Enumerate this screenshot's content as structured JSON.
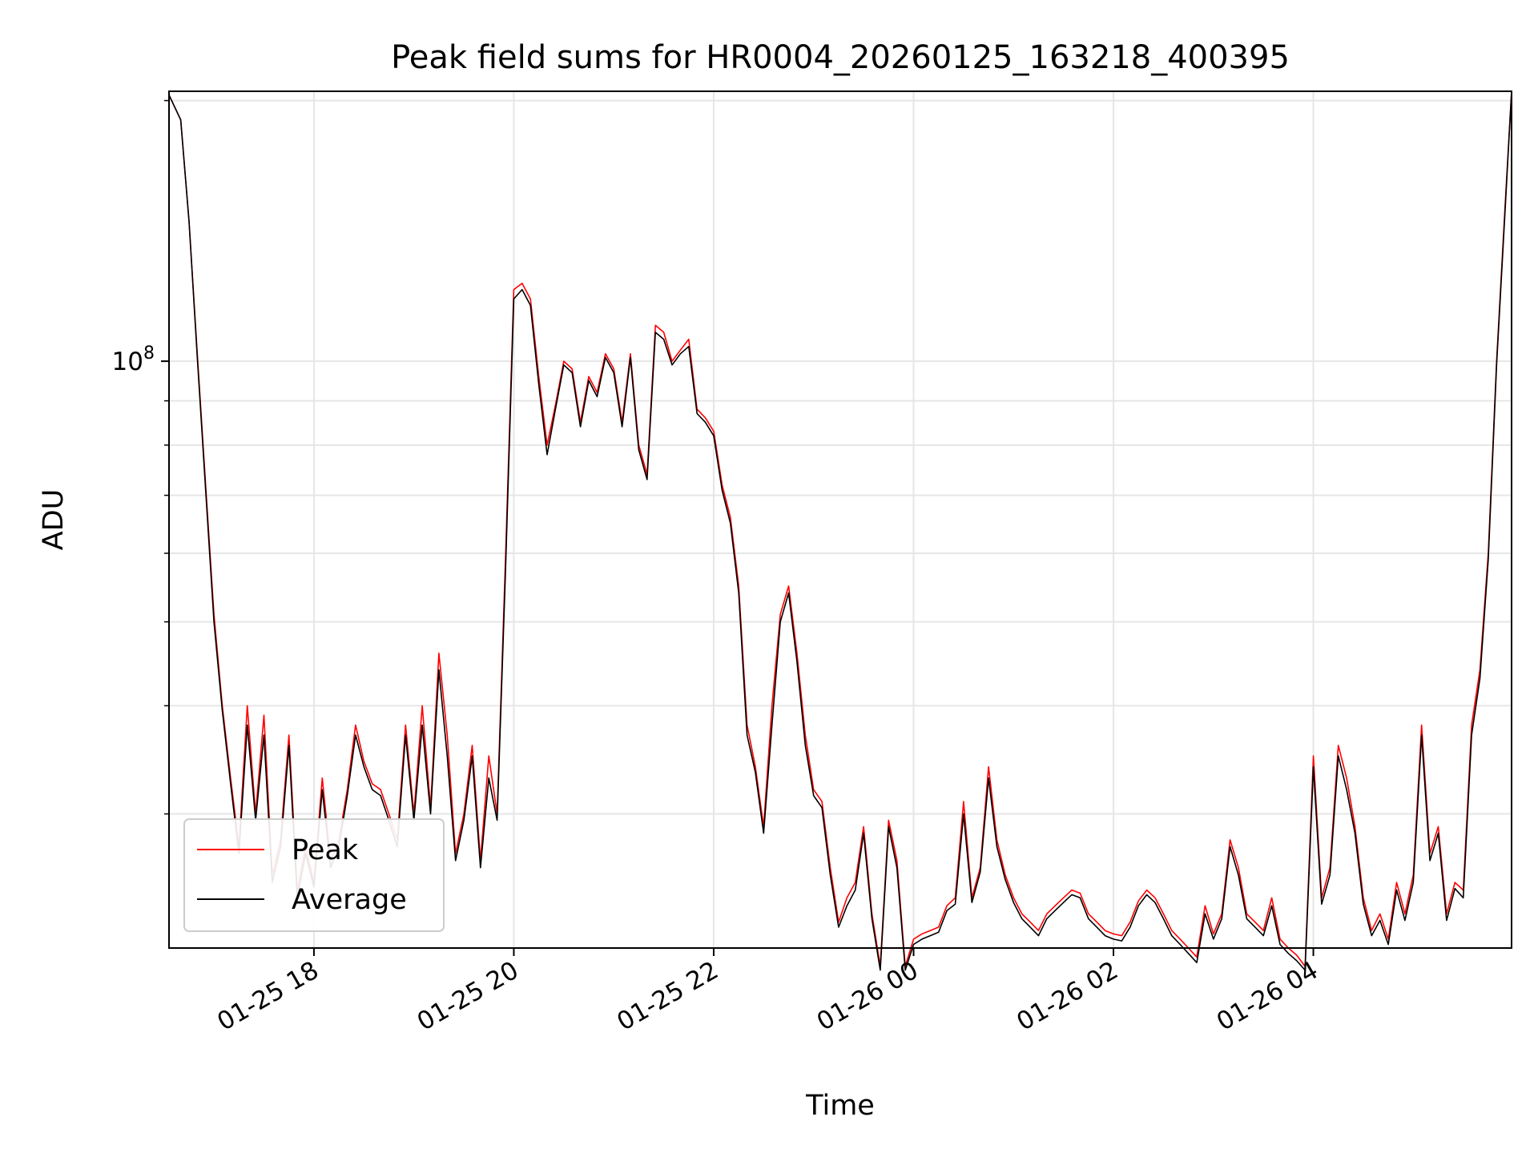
{
  "chart_data": {
    "type": "line",
    "title": "Peak field sums for HR0004_20260125_163218_400395",
    "xlabel": "Time",
    "ylabel": "ADU",
    "yscale": "log",
    "ylim": [
      21000000,
      205000000
    ],
    "xlim": [
      "2026-01-25 16:33",
      "2026-01-26 05:59"
    ],
    "grid": true,
    "legend_position": "lower-left",
    "x_ticks": [
      {
        "value": "2026-01-25 18:00",
        "label": "01-25 18"
      },
      {
        "value": "2026-01-25 20:00",
        "label": "01-25 20"
      },
      {
        "value": "2026-01-25 22:00",
        "label": "01-25 22"
      },
      {
        "value": "2026-01-26 00:00",
        "label": "01-26 00"
      },
      {
        "value": "2026-01-26 02:00",
        "label": "01-26 02"
      },
      {
        "value": "2026-01-26 04:00",
        "label": "01-26 04"
      }
    ],
    "y_ticks": [
      {
        "value": 100000000,
        "label_base": "10",
        "label_exp": "8"
      }
    ],
    "x": [
      "2026-01-25 16:33",
      "2026-01-25 16:40",
      "2026-01-25 16:45",
      "2026-01-25 16:50",
      "2026-01-25 16:55",
      "2026-01-25 17:00",
      "2026-01-25 17:05",
      "2026-01-25 17:10",
      "2026-01-25 17:15",
      "2026-01-25 17:20",
      "2026-01-25 17:25",
      "2026-01-25 17:30",
      "2026-01-25 17:35",
      "2026-01-25 17:40",
      "2026-01-25 17:45",
      "2026-01-25 17:50",
      "2026-01-25 17:55",
      "2026-01-25 18:00",
      "2026-01-25 18:05",
      "2026-01-25 18:10",
      "2026-01-25 18:15",
      "2026-01-25 18:20",
      "2026-01-25 18:25",
      "2026-01-25 18:30",
      "2026-01-25 18:35",
      "2026-01-25 18:40",
      "2026-01-25 18:45",
      "2026-01-25 18:50",
      "2026-01-25 18:55",
      "2026-01-25 19:00",
      "2026-01-25 19:05",
      "2026-01-25 19:10",
      "2026-01-25 19:15",
      "2026-01-25 19:20",
      "2026-01-25 19:25",
      "2026-01-25 19:30",
      "2026-01-25 19:35",
      "2026-01-25 19:40",
      "2026-01-25 19:45",
      "2026-01-25 19:50",
      "2026-01-25 19:55",
      "2026-01-25 20:00",
      "2026-01-25 20:05",
      "2026-01-25 20:10",
      "2026-01-25 20:15",
      "2026-01-25 20:20",
      "2026-01-25 20:25",
      "2026-01-25 20:30",
      "2026-01-25 20:35",
      "2026-01-25 20:40",
      "2026-01-25 20:45",
      "2026-01-25 20:50",
      "2026-01-25 20:55",
      "2026-01-25 21:00",
      "2026-01-25 21:05",
      "2026-01-25 21:10",
      "2026-01-25 21:15",
      "2026-01-25 21:20",
      "2026-01-25 21:25",
      "2026-01-25 21:30",
      "2026-01-25 21:35",
      "2026-01-25 21:40",
      "2026-01-25 21:45",
      "2026-01-25 21:50",
      "2026-01-25 21:55",
      "2026-01-25 22:00",
      "2026-01-25 22:05",
      "2026-01-25 22:10",
      "2026-01-25 22:15",
      "2026-01-25 22:20",
      "2026-01-25 22:25",
      "2026-01-25 22:30",
      "2026-01-25 22:35",
      "2026-01-25 22:40",
      "2026-01-25 22:45",
      "2026-01-25 22:50",
      "2026-01-25 22:55",
      "2026-01-25 23:00",
      "2026-01-25 23:05",
      "2026-01-25 23:10",
      "2026-01-25 23:15",
      "2026-01-25 23:20",
      "2026-01-25 23:25",
      "2026-01-25 23:30",
      "2026-01-25 23:35",
      "2026-01-25 23:40",
      "2026-01-25 23:45",
      "2026-01-25 23:50",
      "2026-01-25 23:55",
      "2026-01-26 00:00",
      "2026-01-26 00:05",
      "2026-01-26 00:10",
      "2026-01-26 00:15",
      "2026-01-26 00:20",
      "2026-01-26 00:25",
      "2026-01-26 00:30",
      "2026-01-26 00:35",
      "2026-01-26 00:40",
      "2026-01-26 00:45",
      "2026-01-26 00:50",
      "2026-01-26 00:55",
      "2026-01-26 01:00",
      "2026-01-26 01:05",
      "2026-01-26 01:10",
      "2026-01-26 01:15",
      "2026-01-26 01:20",
      "2026-01-26 01:25",
      "2026-01-26 01:30",
      "2026-01-26 01:35",
      "2026-01-26 01:40",
      "2026-01-26 01:45",
      "2026-01-26 01:50",
      "2026-01-26 01:55",
      "2026-01-26 02:00",
      "2026-01-26 02:05",
      "2026-01-26 02:10",
      "2026-01-26 02:15",
      "2026-01-26 02:20",
      "2026-01-26 02:25",
      "2026-01-26 02:30",
      "2026-01-26 02:35",
      "2026-01-26 02:40",
      "2026-01-26 02:45",
      "2026-01-26 02:50",
      "2026-01-26 02:55",
      "2026-01-26 03:00",
      "2026-01-26 03:05",
      "2026-01-26 03:10",
      "2026-01-26 03:15",
      "2026-01-26 03:20",
      "2026-01-26 03:25",
      "2026-01-26 03:30",
      "2026-01-26 03:35",
      "2026-01-26 03:40",
      "2026-01-26 03:45",
      "2026-01-26 03:50",
      "2026-01-26 03:55",
      "2026-01-26 04:00",
      "2026-01-26 04:05",
      "2026-01-26 04:10",
      "2026-01-26 04:15",
      "2026-01-26 04:20",
      "2026-01-26 04:25",
      "2026-01-26 04:30",
      "2026-01-26 04:35",
      "2026-01-26 04:40",
      "2026-01-26 04:45",
      "2026-01-26 04:50",
      "2026-01-26 04:55",
      "2026-01-26 05:00",
      "2026-01-26 05:05",
      "2026-01-26 05:10",
      "2026-01-26 05:15",
      "2026-01-26 05:20",
      "2026-01-26 05:25",
      "2026-01-26 05:30",
      "2026-01-26 05:35",
      "2026-01-26 05:40",
      "2026-01-26 05:45",
      "2026-01-26 05:50",
      "2026-01-26 05:55",
      "2026-01-26 05:59"
    ],
    "series": [
      {
        "name": "Peak",
        "color": "#ff0000",
        "values": [
          203000000,
          190000000,
          145000000,
          102000000,
          72000000,
          51000000,
          40000000,
          33000000,
          27500000,
          40000000,
          30000000,
          39000000,
          25500000,
          28000000,
          37000000,
          24500000,
          27500000,
          25000000,
          33000000,
          26500000,
          28000000,
          32000000,
          38000000,
          34500000,
          32500000,
          32000000,
          30000000,
          28000000,
          38000000,
          30000000,
          40000000,
          30500000,
          46000000,
          37000000,
          27000000,
          30000000,
          36000000,
          26500000,
          35000000,
          30000000,
          59000000,
          121000000,
          123000000,
          118000000,
          96000000,
          80000000,
          89000000,
          100000000,
          98000000,
          85000000,
          96000000,
          92000000,
          102000000,
          98000000,
          85000000,
          102000000,
          80000000,
          74000000,
          110000000,
          108000000,
          100000000,
          103000000,
          106000000,
          88000000,
          86000000,
          83000000,
          72000000,
          66000000,
          55000000,
          38000000,
          34000000,
          29000000,
          40000000,
          51000000,
          55000000,
          46000000,
          37000000,
          32000000,
          31000000,
          26000000,
          22500000,
          24000000,
          25000000,
          29000000,
          23000000,
          20000000,
          29500000,
          26500000,
          20000000,
          21500000,
          21800000,
          22000000,
          22200000,
          23500000,
          24000000,
          31000000,
          24000000,
          26000000,
          34000000,
          28000000,
          25500000,
          24000000,
          23000000,
          22500000,
          22000000,
          23000000,
          23500000,
          24000000,
          24500000,
          24300000,
          23000000,
          22500000,
          22000000,
          21800000,
          21700000,
          22500000,
          23800000,
          24500000,
          24000000,
          23000000,
          22000000,
          21500000,
          21000000,
          20500000,
          23500000,
          21800000,
          23000000,
          28000000,
          26000000,
          23000000,
          22500000,
          22000000,
          24000000,
          21500000,
          21000000,
          20600000,
          20000000,
          35000000,
          24000000,
          26000000,
          36000000,
          33000000,
          29000000,
          24000000,
          22000000,
          23000000,
          21500000,
          25000000,
          23000000,
          25500000,
          38000000,
          27000000,
          29000000,
          23000000,
          25000000,
          24500000,
          38000000,
          44000000,
          60000000,
          100000000,
          150000000,
          205000000
        ]
      },
      {
        "name": "Average",
        "color": "#000000",
        "values": [
          203000000,
          190000000,
          145000000,
          101000000,
          71000000,
          50000000,
          39500000,
          32500000,
          27000000,
          38000000,
          29500000,
          37000000,
          25000000,
          27500000,
          36000000,
          24000000,
          27000000,
          24700000,
          32000000,
          26000000,
          27500000,
          31500000,
          37000000,
          34000000,
          32000000,
          31500000,
          29500000,
          27500000,
          37000000,
          29500000,
          38000000,
          30000000,
          44000000,
          35000000,
          26500000,
          29500000,
          35000000,
          26000000,
          33000000,
          29500000,
          57000000,
          118000000,
          121000000,
          116000000,
          94000000,
          78000000,
          88000000,
          99000000,
          97000000,
          84000000,
          95000000,
          91000000,
          101000000,
          97000000,
          84000000,
          101000000,
          79000000,
          73000000,
          108000000,
          106000000,
          99000000,
          102000000,
          104000000,
          87000000,
          85000000,
          82000000,
          71000000,
          65000000,
          54000000,
          37000000,
          33500000,
          28500000,
          38000000,
          50000000,
          54000000,
          45000000,
          36000000,
          31500000,
          30500000,
          25500000,
          22200000,
          23500000,
          24500000,
          28500000,
          22700000,
          19800000,
          29000000,
          26000000,
          19800000,
          21200000,
          21500000,
          21700000,
          21900000,
          23200000,
          23600000,
          30000000,
          23700000,
          25700000,
          33000000,
          27500000,
          25200000,
          23700000,
          22700000,
          22200000,
          21700000,
          22700000,
          23200000,
          23700000,
          24200000,
          24000000,
          22700000,
          22200000,
          21700000,
          21500000,
          21400000,
          22200000,
          23500000,
          24200000,
          23700000,
          22700000,
          21700000,
          21200000,
          20700000,
          20200000,
          23000000,
          21500000,
          22700000,
          27500000,
          25500000,
          22700000,
          22200000,
          21700000,
          23500000,
          21200000,
          20700000,
          20300000,
          19800000,
          34000000,
          23600000,
          25500000,
          35000000,
          32000000,
          28500000,
          23600000,
          21700000,
          22600000,
          21200000,
          24500000,
          22600000,
          25000000,
          37000000,
          26500000,
          28500000,
          22600000,
          24600000,
          24000000,
          37000000,
          43000000,
          59000000,
          99000000,
          148000000,
          205000000
        ]
      }
    ]
  }
}
